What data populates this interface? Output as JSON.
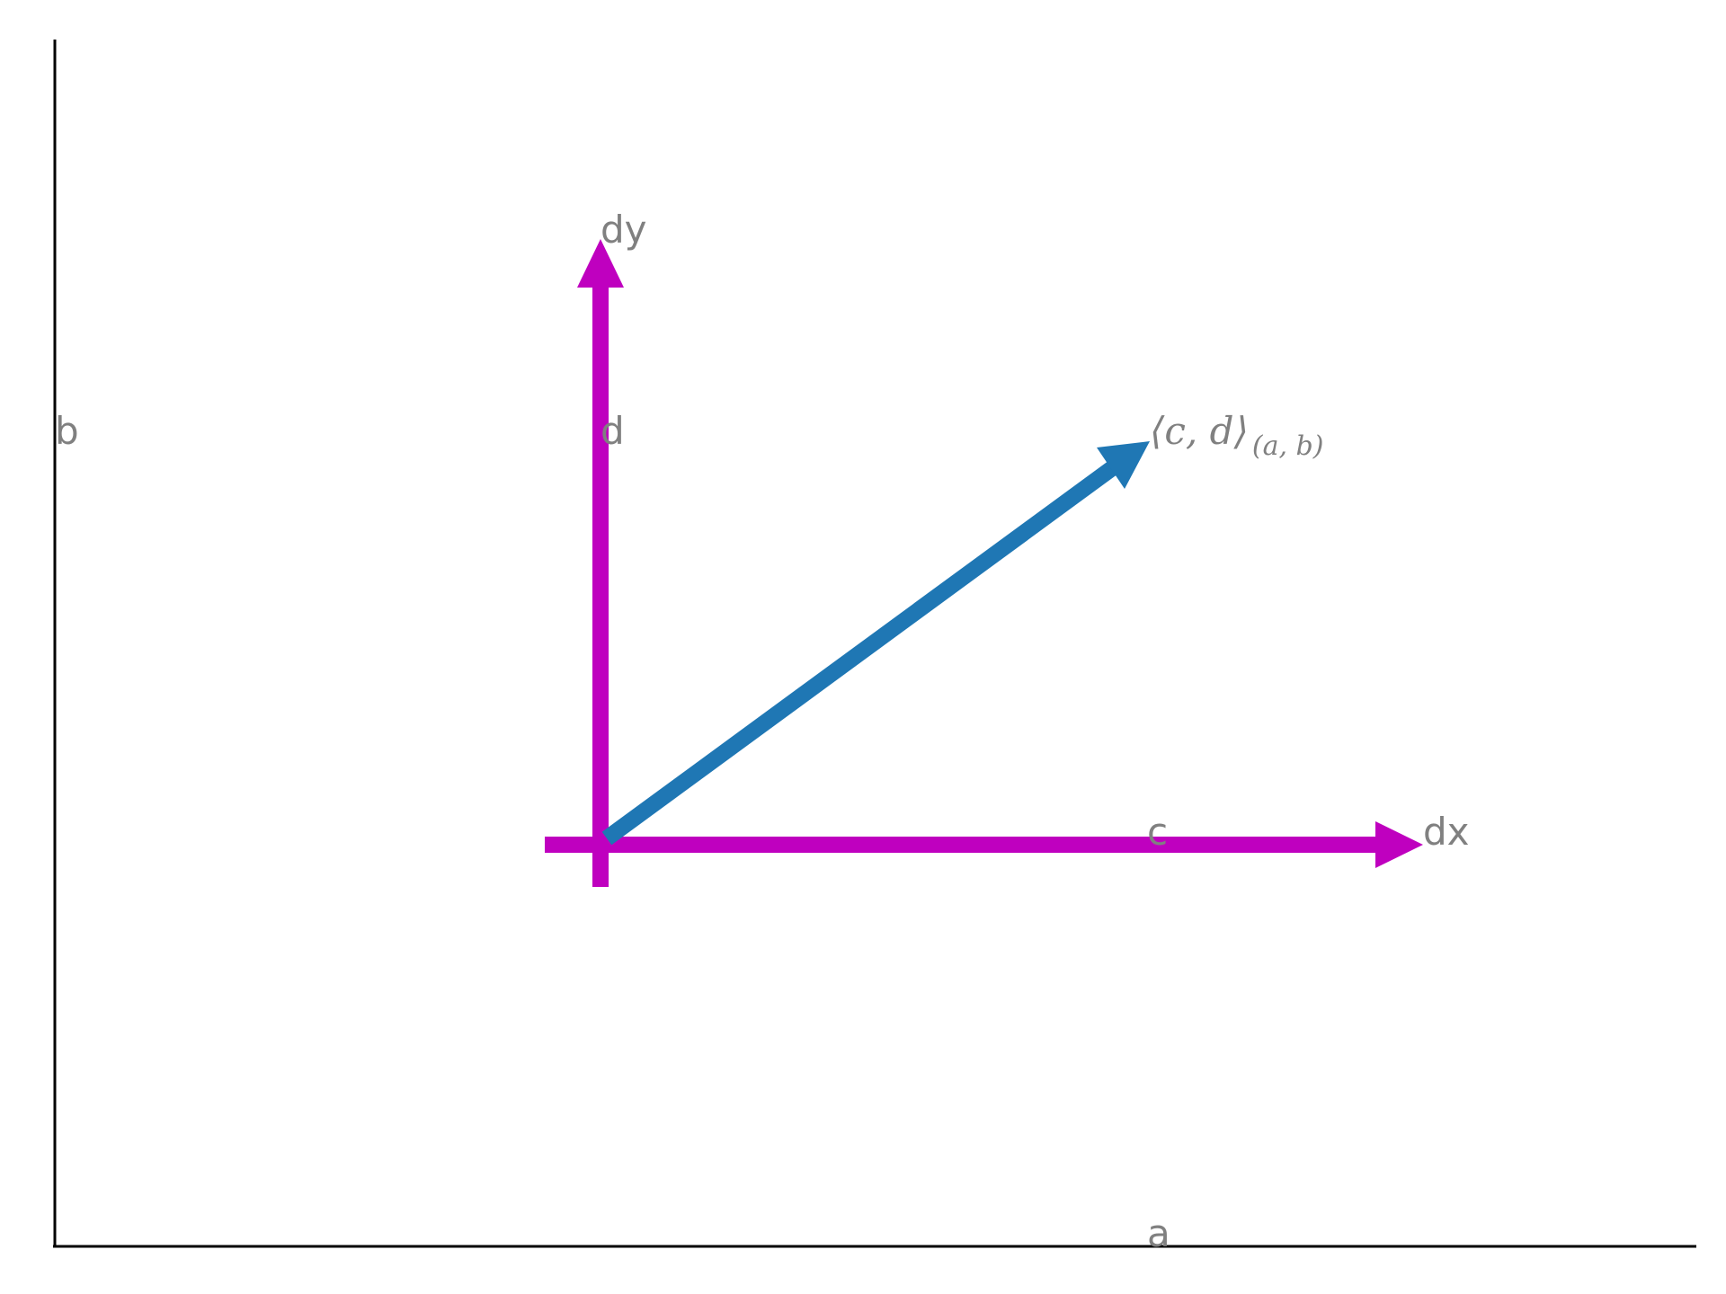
{
  "labels": {
    "a": "a",
    "b": "b",
    "c": "c",
    "d": "d",
    "dx": "dx",
    "dy": "dy",
    "vector_main": "⟨c, d⟩",
    "vector_sub": "(a, b)"
  },
  "colors": {
    "axis": "#000000",
    "component_arrows": "#BF00BF",
    "vector_arrow": "#1F77B4",
    "label_text": "#808080"
  }
}
